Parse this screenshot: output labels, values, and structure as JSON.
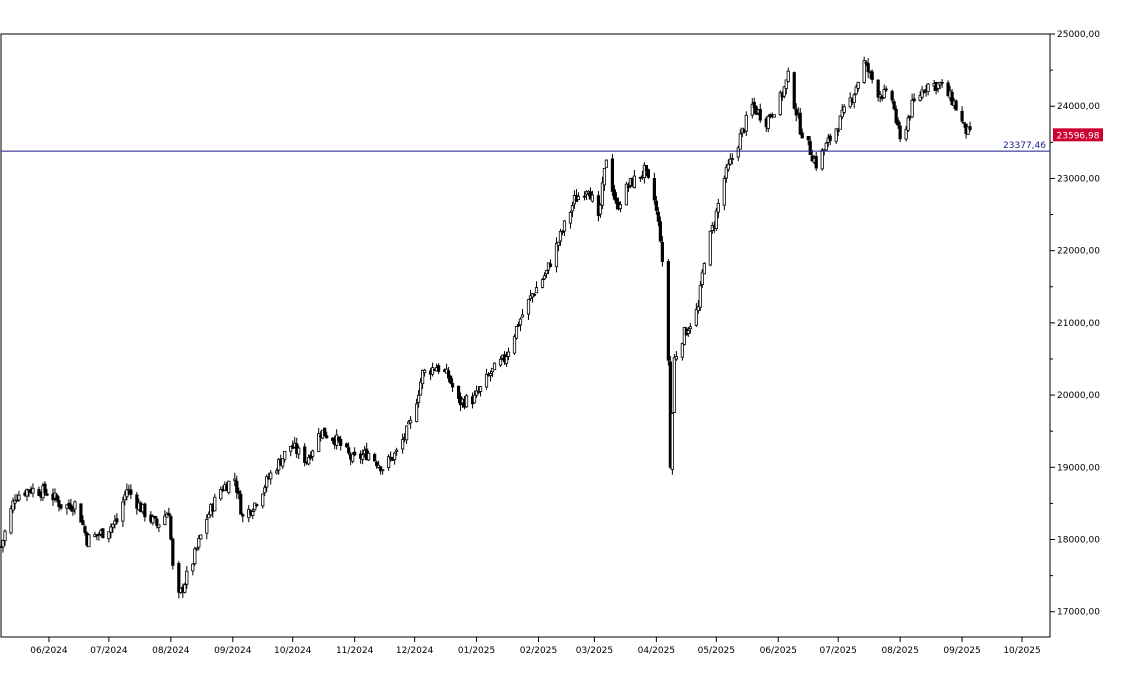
{
  "chart_data": {
    "type": "candlestick",
    "title": "",
    "xlabel": "",
    "ylabel": "",
    "ylim": [
      16650,
      25000
    ],
    "y_ticks": [
      "17000,00",
      "18000,00",
      "19000,00",
      "20000,00",
      "21000,00",
      "22000,00",
      "23000,00",
      "24000,00",
      "25000,00"
    ],
    "x_tick_labels": [
      "06/2024",
      "07/2024",
      "08/2024",
      "09/2024",
      "10/2024",
      "11/2024",
      "12/2024",
      "01/2025",
      "02/2025",
      "03/2025",
      "04/2025",
      "05/2025",
      "06/2025",
      "07/2025",
      "08/2025",
      "09/2025",
      "10/2025"
    ],
    "x_range": [
      "2024-05-08",
      "2025-10-15"
    ],
    "reference_line": {
      "value": 23377.46,
      "label": "23377,46",
      "color": "#1a1a8c"
    },
    "last_price": {
      "value": 23596.98,
      "label": "23596,98",
      "color": "#cc0033"
    },
    "series_close_path": [
      [
        "2024-05-08",
        17900
      ],
      [
        "2024-05-15",
        18600
      ],
      [
        "2024-05-22",
        18700
      ],
      [
        "2024-06-01",
        18650
      ],
      [
        "2024-06-08",
        18450
      ],
      [
        "2024-06-15",
        18500
      ],
      [
        "2024-06-20",
        18000
      ],
      [
        "2024-06-28",
        18100
      ],
      [
        "2024-07-05",
        18250
      ],
      [
        "2024-07-10",
        18700
      ],
      [
        "2024-07-18",
        18400
      ],
      [
        "2024-07-25",
        18200
      ],
      [
        "2024-07-31",
        18400
      ],
      [
        "2024-08-02",
        17600
      ],
      [
        "2024-08-05",
        17200
      ],
      [
        "2024-08-12",
        17700
      ],
      [
        "2024-08-19",
        18300
      ],
      [
        "2024-08-26",
        18700
      ],
      [
        "2024-09-02",
        18850
      ],
      [
        "2024-09-06",
        18300
      ],
      [
        "2024-09-12",
        18500
      ],
      [
        "2024-09-20",
        18900
      ],
      [
        "2024-09-30",
        19300
      ],
      [
        "2024-10-08",
        19100
      ],
      [
        "2024-10-15",
        19500
      ],
      [
        "2024-10-22",
        19400
      ],
      [
        "2024-10-31",
        19100
      ],
      [
        "2024-11-08",
        19200
      ],
      [
        "2024-11-15",
        19000
      ],
      [
        "2024-11-22",
        19200
      ],
      [
        "2024-11-29",
        19600
      ],
      [
        "2024-12-05",
        20300
      ],
      [
        "2024-12-12",
        20400
      ],
      [
        "2024-12-18",
        20250
      ],
      [
        "2024-12-23",
        19900
      ],
      [
        "2024-12-31",
        19950
      ],
      [
        "2025-01-08",
        20300
      ],
      [
        "2025-01-15",
        20500
      ],
      [
        "2025-01-22",
        21000
      ],
      [
        "2025-01-29",
        21400
      ],
      [
        "2025-02-05",
        21700
      ],
      [
        "2025-02-12",
        22200
      ],
      [
        "2025-02-19",
        22700
      ],
      [
        "2025-02-26",
        22900
      ],
      [
        "2025-03-03",
        22400
      ],
      [
        "2025-03-07",
        23300
      ],
      [
        "2025-03-12",
        22600
      ],
      [
        "2025-03-18",
        22900
      ],
      [
        "2025-03-26",
        23100
      ],
      [
        "2025-03-31",
        22700
      ],
      [
        "2025-04-03",
        22200
      ],
      [
        "2025-04-07",
        20500
      ],
      [
        "2025-04-08",
        19000
      ],
      [
        "2025-04-10",
        20500
      ],
      [
        "2025-04-14",
        20800
      ],
      [
        "2025-04-22",
        21200
      ],
      [
        "2025-04-25",
        21900
      ],
      [
        "2025-04-30",
        22400
      ],
      [
        "2025-05-05",
        23000
      ],
      [
        "2025-05-12",
        23500
      ],
      [
        "2025-05-19",
        24000
      ],
      [
        "2025-05-26",
        23800
      ],
      [
        "2025-06-02",
        24100
      ],
      [
        "2025-06-06",
        24400
      ],
      [
        "2025-06-12",
        23700
      ],
      [
        "2025-06-20",
        23200
      ],
      [
        "2025-06-25",
        23450
      ],
      [
        "2025-07-02",
        23800
      ],
      [
        "2025-07-09",
        24200
      ],
      [
        "2025-07-14",
        24600
      ],
      [
        "2025-07-21",
        24200
      ],
      [
        "2025-07-28",
        24100
      ],
      [
        "2025-08-01",
        23500
      ],
      [
        "2025-08-07",
        24000
      ],
      [
        "2025-08-14",
        24300
      ],
      [
        "2025-08-21",
        24300
      ],
      [
        "2025-08-28",
        24050
      ],
      [
        "2025-09-02",
        23700
      ],
      [
        "2025-09-05",
        23597
      ]
    ],
    "grid": false,
    "legend": "none"
  }
}
